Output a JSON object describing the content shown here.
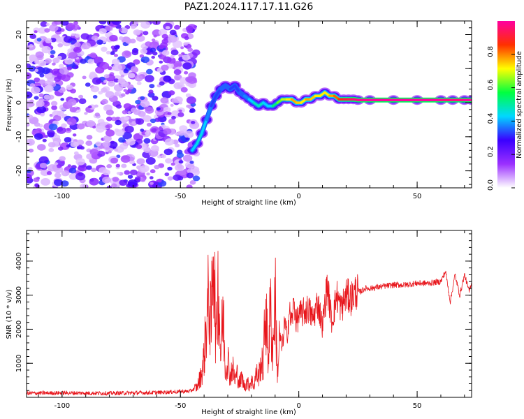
{
  "title": "PAZ1.2024.117.17.11.G26",
  "chart_data": [
    {
      "type": "heatmap",
      "name": "spectrogram",
      "xlabel": "Height of straight line (km)",
      "ylabel": "Frequency (Hz)",
      "xlim": [
        -115,
        73
      ],
      "ylim": [
        -25,
        24
      ],
      "xticks": [
        -100,
        -50,
        0,
        50
      ],
      "yticks": [
        -20,
        -10,
        0,
        10,
        20
      ],
      "xtick_labels": [
        "-100",
        "-50",
        "0",
        "50"
      ],
      "ytick_labels": [
        "-20",
        "-10",
        "0",
        "10",
        "20"
      ],
      "noise_region_x": [
        -115,
        -43
      ],
      "colorbar": {
        "label": "Normalized spectral amplitude",
        "range": [
          0.0,
          1.0
        ],
        "ticks": [
          0.0,
          0.2,
          0.4,
          0.6,
          0.8
        ],
        "tick_labels": [
          "0.0",
          "0.2",
          "0.4",
          "0.6",
          "0.8"
        ],
        "stops": [
          "#ffffff",
          "#9b30ff",
          "#3a00ff",
          "#00d8ff",
          "#00ff40",
          "#ffff00",
          "#ff3000",
          "#ff00a0"
        ]
      },
      "ridge": {
        "x": [
          -45,
          -43,
          -41,
          -39,
          -37,
          -35,
          -33,
          -31,
          -29,
          -27,
          -25,
          -23,
          -21,
          -19,
          -17,
          -15,
          -13,
          -11,
          -9,
          -7,
          -5,
          -3,
          -1,
          1,
          3,
          5,
          7,
          9,
          11,
          13,
          15,
          17,
          19,
          21,
          23,
          25,
          30,
          40,
          50,
          60,
          65,
          70,
          73
        ],
        "y": [
          -14,
          -12,
          -9,
          -5,
          -1,
          2,
          4,
          5,
          4,
          5,
          3,
          2,
          1,
          0,
          -1,
          0,
          -1,
          -1,
          0,
          1,
          1,
          1,
          0,
          0,
          1,
          1,
          2,
          2,
          3,
          2,
          2,
          1,
          1,
          1,
          1,
          0.8,
          0.8,
          0.8,
          0.8,
          0.8,
          0.8,
          0.8,
          0.8
        ],
        "amplitude": [
          0.4,
          0.45,
          0.45,
          0.4,
          0.35,
          0.3,
          0.35,
          0.35,
          0.35,
          0.3,
          0.35,
          0.35,
          0.4,
          0.45,
          0.5,
          0.45,
          0.4,
          0.45,
          0.6,
          0.65,
          0.7,
          0.75,
          0.8,
          0.7,
          0.75,
          0.8,
          0.7,
          0.75,
          0.7,
          0.75,
          0.8,
          0.85,
          0.9,
          0.92,
          0.95,
          0.98,
          1.0,
          1.0,
          1.0,
          1.0,
          0.95,
          1.0,
          1.0
        ]
      }
    },
    {
      "type": "line",
      "name": "snr",
      "xlabel": "Height of straight line (km)",
      "ylabel": "SNR (10 * v/v)",
      "xlim": [
        -115,
        73
      ],
      "ylim": [
        0,
        4900
      ],
      "xticks": [
        -100,
        -50,
        0,
        50
      ],
      "yticks": [
        1000,
        2000,
        3000,
        4000
      ],
      "xtick_labels": [
        "-100",
        "-50",
        "0",
        "50"
      ],
      "ytick_labels": [
        "1000",
        "2000",
        "3000",
        "4000"
      ],
      "color": "#e8161c",
      "series": [
        {
          "x": [
            -115,
            -100,
            -80,
            -60,
            -46,
            -43,
            -41,
            -40,
            -39,
            -38,
            -37,
            -36,
            -35,
            -34,
            -33,
            -32,
            -31,
            -30,
            -29,
            -28,
            -27,
            -26,
            -25,
            -24,
            -23,
            -22,
            -21,
            -20,
            -19,
            -18,
            -17,
            -16,
            -15,
            -14,
            -13,
            -12,
            -11,
            -10,
            -9,
            -8,
            -7,
            -6,
            -5,
            -4,
            -3,
            -2,
            -1,
            0,
            2,
            4,
            6,
            8,
            10,
            12,
            14,
            16,
            18,
            20,
            22,
            24,
            26,
            28,
            30,
            35,
            40,
            45,
            50,
            55,
            60,
            62,
            64,
            66,
            68,
            70,
            72,
            73
          ],
          "y": [
            120,
            130,
            120,
            140,
            180,
            300,
            700,
            1200,
            2200,
            3000,
            2000,
            4900,
            1500,
            3500,
            1200,
            2500,
            800,
            1200,
            600,
            900,
            500,
            700,
            400,
            600,
            300,
            450,
            350,
            500,
            350,
            700,
            600,
            1000,
            900,
            2800,
            1100,
            2600,
            1300,
            3000,
            700,
            1800,
            1400,
            2200,
            1800,
            2500,
            2200,
            2800,
            2200,
            2400,
            2500,
            2600,
            2300,
            2800,
            2100,
            3300,
            2200,
            3000,
            2600,
            3000,
            2900,
            3100,
            3100,
            3200,
            3200,
            3250,
            3300,
            3300,
            3350,
            3350,
            3400,
            3700,
            2800,
            3600,
            3000,
            3600,
            3100,
            3400
          ]
        }
      ]
    }
  ]
}
